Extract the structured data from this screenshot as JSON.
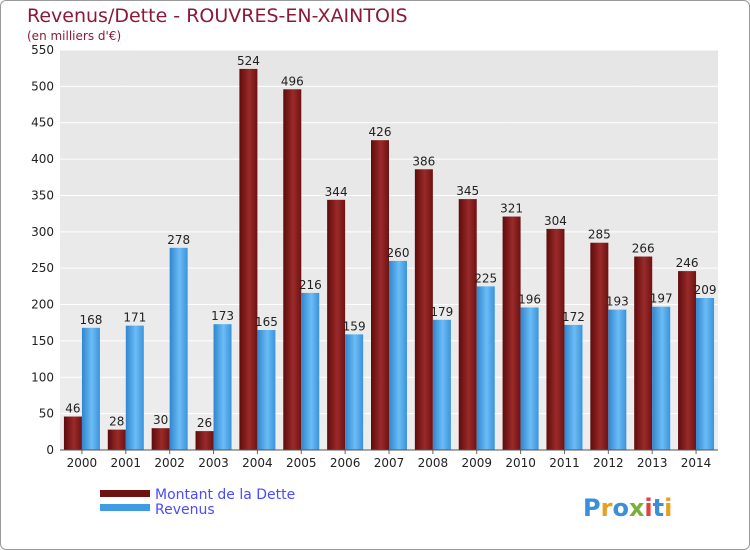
{
  "chart_data": {
    "type": "bar",
    "title": "Revenus/Dette - ROUVRES-EN-XAINTOIS",
    "subtitle": "(en milliers d'€)",
    "categories": [
      "2000",
      "2001",
      "2002",
      "2003",
      "2004",
      "2005",
      "2006",
      "2007",
      "2008",
      "2009",
      "2010",
      "2011",
      "2012",
      "2013",
      "2014"
    ],
    "series": [
      {
        "name": "Montant de la Dette",
        "values": [
          46,
          28,
          30,
          26,
          524,
          496,
          344,
          426,
          386,
          345,
          321,
          304,
          285,
          266,
          246
        ],
        "color": "#8b1a1a"
      },
      {
        "name": "Revenus",
        "values": [
          168,
          171,
          278,
          173,
          165,
          216,
          159,
          260,
          179,
          225,
          196,
          172,
          193,
          197,
          209
        ],
        "color": "#4aa3e8"
      }
    ],
    "ylim": [
      0,
      550
    ],
    "yticks": [
      "0",
      "50",
      "100",
      "150",
      "200",
      "250",
      "300",
      "350",
      "400",
      "450",
      "500",
      "550"
    ],
    "grid": true,
    "legend": "bottom-left"
  },
  "logo": {
    "text": "Proxiti"
  }
}
